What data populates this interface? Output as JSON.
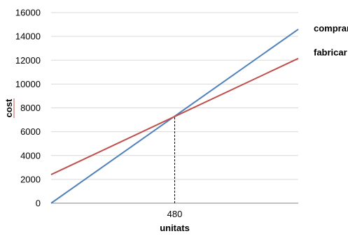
{
  "chart_data": {
    "type": "line",
    "xlabel": "unitats",
    "ylabel": "cost",
    "ylim": [
      0,
      16000
    ],
    "y_ticks": [
      0,
      2000,
      4000,
      6000,
      8000,
      10000,
      12000,
      14000,
      16000
    ],
    "xlim": [
      0,
      960
    ],
    "x_ticks": [
      480
    ],
    "grid": "horizontal",
    "legend": "end-of-line labels",
    "series": [
      {
        "name": "comprar",
        "color": "#4f81bd",
        "x": [
          0,
          960
        ],
        "y": [
          0,
          14600
        ]
      },
      {
        "name": "fabricar",
        "color": "#c0504d",
        "x": [
          0,
          960
        ],
        "y": [
          2400,
          12150
        ]
      }
    ],
    "annotations": [
      {
        "type": "vertical-dashed-drop",
        "x": 480,
        "y": 7200
      }
    ]
  }
}
